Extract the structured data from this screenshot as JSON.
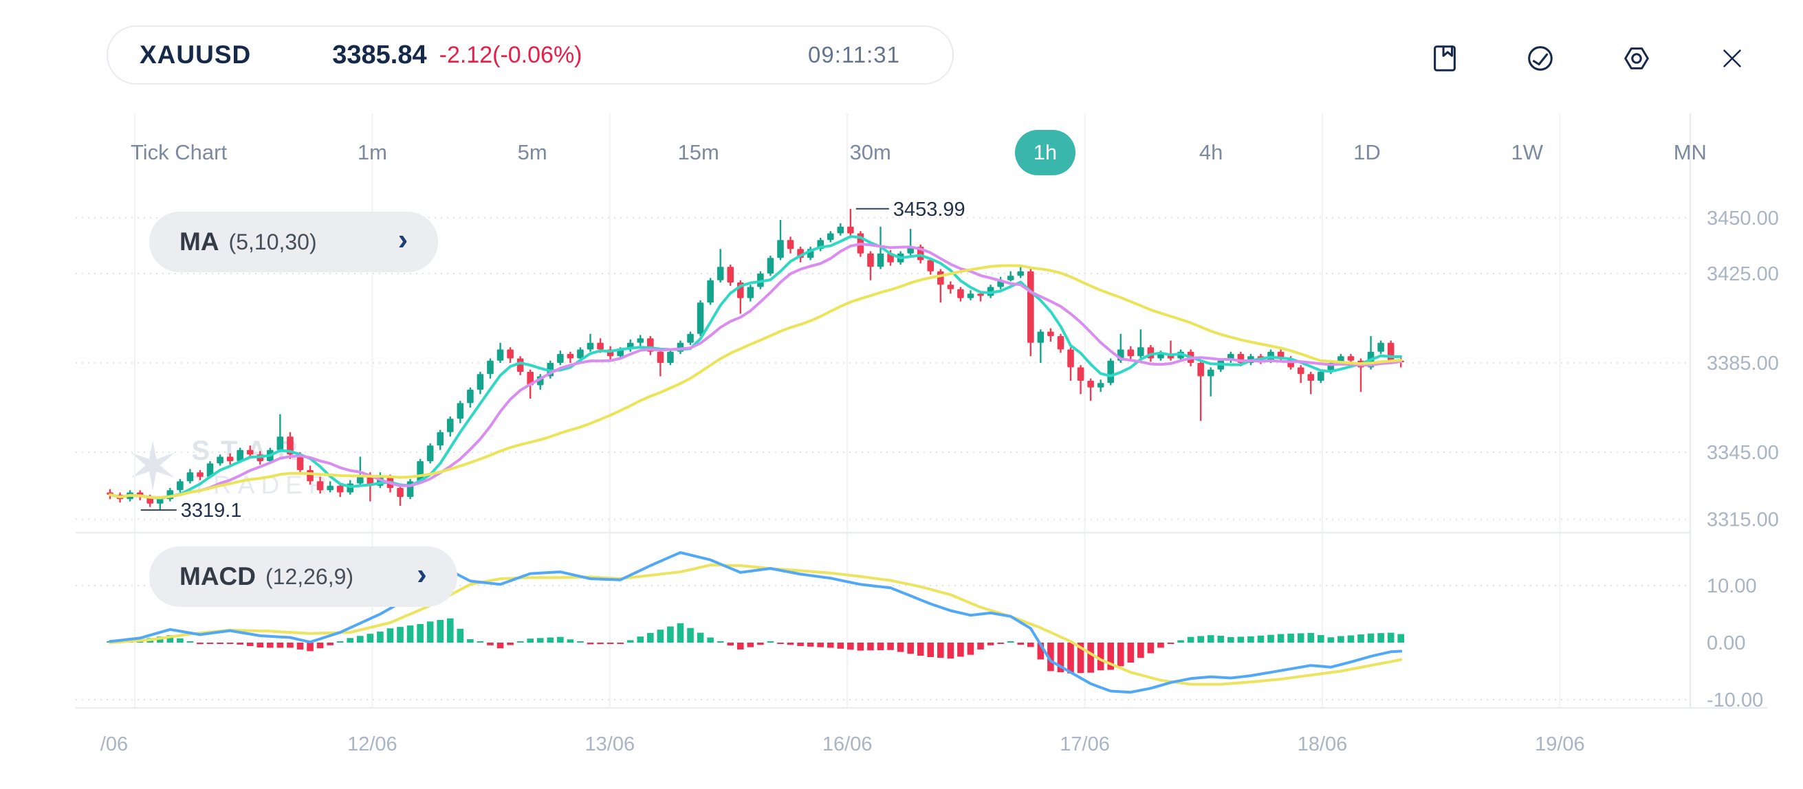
{
  "header": {
    "symbol": "XAUUSD",
    "price": "3385.84",
    "change": "-2.12(-0.06%)",
    "time": "09:11:31"
  },
  "toolbar": {
    "icons": [
      "bookmark",
      "trend-circle",
      "settings-hex",
      "close"
    ]
  },
  "timeframes": {
    "items": [
      "Tick Chart",
      "1m",
      "5m",
      "15m",
      "30m",
      "1h",
      "4h",
      "1D",
      "1W",
      "MN"
    ],
    "active": "1h"
  },
  "indicators": {
    "ma": {
      "name": "MA",
      "params": "(5,10,30)"
    },
    "macd": {
      "name": "MACD",
      "params": "(12,26,9)"
    }
  },
  "watermark": {
    "line1": "STAR",
    "line2": "TRADER"
  },
  "colors": {
    "up": "#14a38d",
    "down": "#ef3a53",
    "hist_up": "#19bd8e",
    "hist_down": "#ef2d4e",
    "ma5": "#2fd8c4",
    "ma10": "#d98df0",
    "ma30": "#ece458",
    "macd_line": "#51a8f7",
    "signal_line": "#ece35e",
    "grid_dotted": "#dfe3e9",
    "grid_solid": "#f1f2f5",
    "separator": "#e9ecf0",
    "axis_text": "#a9b4c5",
    "annotation_text": "#22324e",
    "accent": "#3ab7ac"
  },
  "chart_data": {
    "type": "candlestick",
    "title": "XAUUSD 1h with MA(5,10,30) and MACD(12,26,9)",
    "x_labels": [
      "/06",
      "12/06",
      "13/06",
      "16/06",
      "17/06",
      "18/06",
      "19/06"
    ],
    "price_axis_ticks": [
      3450.0,
      3425.0,
      3385.0,
      3345.0,
      3315.0
    ],
    "price_axis_range": [
      3310,
      3460
    ],
    "macd_axis_ticks": [
      10.0,
      0.0,
      -10.0
    ],
    "macd_axis_range": [
      -13,
      17
    ],
    "annotations": {
      "high": {
        "text": "3453.99",
        "bar": 74,
        "price": 3453.99
      },
      "low": {
        "text": "3319.1",
        "bar": 5,
        "price": 3319.1
      }
    },
    "moving_average_periods": [
      5,
      10,
      30
    ],
    "macd_params": [
      12,
      26,
      9
    ],
    "candles_ohlc": [
      [
        3327,
        3328.5,
        3324,
        3326
      ],
      [
        3326,
        3327,
        3322.5,
        3324
      ],
      [
        3324,
        3328,
        3323,
        3327
      ],
      [
        3327,
        3328,
        3323.5,
        3325
      ],
      [
        3325,
        3326,
        3320.5,
        3322
      ],
      [
        3322,
        3325,
        3319.1,
        3324
      ],
      [
        3324,
        3329,
        3323,
        3328
      ],
      [
        3328,
        3333,
        3327,
        3332
      ],
      [
        3332,
        3337.5,
        3331,
        3336
      ],
      [
        3336,
        3337,
        3332.5,
        3334
      ],
      [
        3334,
        3341,
        3333.5,
        3340
      ],
      [
        3340,
        3344,
        3339,
        3343
      ],
      [
        3343,
        3344.5,
        3339.5,
        3341
      ],
      [
        3341,
        3347,
        3340.5,
        3346
      ],
      [
        3346,
        3348,
        3342.5,
        3344
      ],
      [
        3344,
        3345.5,
        3339.5,
        3341
      ],
      [
        3341,
        3347,
        3340,
        3346
      ],
      [
        3346,
        3362,
        3345,
        3352
      ],
      [
        3352,
        3354,
        3342,
        3344
      ],
      [
        3344,
        3345,
        3335,
        3337
      ],
      [
        3337,
        3339,
        3330.5,
        3332
      ],
      [
        3332,
        3334,
        3326.5,
        3328
      ],
      [
        3328,
        3332,
        3327,
        3330
      ],
      [
        3330,
        3331,
        3325,
        3327
      ],
      [
        3327,
        3332.5,
        3326,
        3331
      ],
      [
        3331,
        3343,
        3330,
        3334
      ],
      [
        3334,
        3336,
        3323,
        3330
      ],
      [
        3330,
        3336,
        3329,
        3334
      ],
      [
        3334,
        3335,
        3327,
        3329
      ],
      [
        3329,
        3330,
        3321,
        3325
      ],
      [
        3325,
        3333,
        3324,
        3332
      ],
      [
        3332,
        3342,
        3331,
        3341
      ],
      [
        3341,
        3349,
        3340,
        3348
      ],
      [
        3348,
        3355,
        3346,
        3354
      ],
      [
        3354,
        3361,
        3352,
        3360
      ],
      [
        3360,
        3368,
        3358,
        3367
      ],
      [
        3367,
        3374,
        3365,
        3373
      ],
      [
        3373,
        3381,
        3371,
        3380
      ],
      [
        3380,
        3387,
        3378,
        3386
      ],
      [
        3386,
        3394,
        3385,
        3391
      ],
      [
        3391,
        3392,
        3385,
        3387
      ],
      [
        3387,
        3388,
        3379.5,
        3381
      ],
      [
        3381,
        3382,
        3369,
        3375
      ],
      [
        3375,
        3380,
        3373,
        3379
      ],
      [
        3379,
        3386,
        3378,
        3385
      ],
      [
        3385,
        3390.5,
        3384,
        3389
      ],
      [
        3389,
        3390,
        3385,
        3387
      ],
      [
        3387,
        3392,
        3386,
        3391
      ],
      [
        3391,
        3398,
        3390,
        3394
      ],
      [
        3394,
        3396,
        3389.5,
        3391
      ],
      [
        3391,
        3392.5,
        3386.5,
        3388
      ],
      [
        3388,
        3392,
        3387,
        3391
      ],
      [
        3391,
        3395.5,
        3390,
        3394
      ],
      [
        3394,
        3397.5,
        3392,
        3396
      ],
      [
        3396,
        3397,
        3388.5,
        3390
      ],
      [
        3390,
        3391,
        3379,
        3385
      ],
      [
        3385,
        3391,
        3384,
        3390
      ],
      [
        3390,
        3395,
        3389,
        3394
      ],
      [
        3394,
        3399,
        3393,
        3398
      ],
      [
        3398,
        3413,
        3397,
        3412
      ],
      [
        3412,
        3423,
        3411,
        3422
      ],
      [
        3422,
        3436,
        3421,
        3428
      ],
      [
        3428,
        3429,
        3419.5,
        3421
      ],
      [
        3421,
        3422,
        3407,
        3414
      ],
      [
        3414,
        3420,
        3412.5,
        3419
      ],
      [
        3419,
        3426,
        3418,
        3425
      ],
      [
        3425,
        3433,
        3424,
        3432
      ],
      [
        3432,
        3449,
        3431,
        3440
      ],
      [
        3440,
        3441.5,
        3434,
        3436
      ],
      [
        3436,
        3437,
        3430,
        3432
      ],
      [
        3432,
        3437,
        3431,
        3436
      ],
      [
        3436,
        3441,
        3435,
        3440
      ],
      [
        3440,
        3444,
        3439,
        3443
      ],
      [
        3443,
        3447.5,
        3442,
        3446
      ],
      [
        3446,
        3453.99,
        3441,
        3443
      ],
      [
        3443,
        3444,
        3432.5,
        3434
      ],
      [
        3434,
        3435,
        3422,
        3428
      ],
      [
        3428,
        3446,
        3427,
        3434
      ],
      [
        3434,
        3435.5,
        3428.5,
        3430
      ],
      [
        3430,
        3435,
        3429,
        3434
      ],
      [
        3434,
        3445,
        3433,
        3437
      ],
      [
        3437,
        3438,
        3429.5,
        3431
      ],
      [
        3431,
        3432,
        3424.5,
        3426
      ],
      [
        3426,
        3427,
        3412,
        3420
      ],
      [
        3420,
        3421.5,
        3416,
        3418
      ],
      [
        3418,
        3419,
        3412.5,
        3414
      ],
      [
        3414,
        3417.5,
        3413,
        3416
      ],
      [
        3416,
        3417,
        3412.5,
        3415
      ],
      [
        3415,
        3420,
        3414,
        3419
      ],
      [
        3419,
        3423.5,
        3418,
        3422
      ],
      [
        3422,
        3426,
        3421.5,
        3424
      ],
      [
        3424,
        3429,
        3423,
        3426
      ],
      [
        3426,
        3427,
        3388,
        3394
      ],
      [
        3394,
        3400,
        3385,
        3399
      ],
      [
        3399,
        3400.5,
        3394.5,
        3397
      ],
      [
        3397,
        3398,
        3389.5,
        3391
      ],
      [
        3391,
        3392,
        3377,
        3383
      ],
      [
        3383,
        3384,
        3371,
        3377
      ],
      [
        3377,
        3378,
        3368,
        3374
      ],
      [
        3374,
        3377.5,
        3372,
        3376
      ],
      [
        3376,
        3387,
        3375,
        3386
      ],
      [
        3386,
        3398,
        3385,
        3391
      ],
      [
        3391,
        3392.5,
        3386,
        3388
      ],
      [
        3388,
        3400,
        3387,
        3392
      ],
      [
        3392,
        3393,
        3385.5,
        3387
      ],
      [
        3387,
        3390.5,
        3386,
        3389
      ],
      [
        3389,
        3395,
        3386,
        3387
      ],
      [
        3387,
        3391,
        3386,
        3390
      ],
      [
        3390,
        3391,
        3383.5,
        3385
      ],
      [
        3385,
        3386,
        3359,
        3379
      ],
      [
        3379,
        3383,
        3370,
        3382
      ],
      [
        3382,
        3387,
        3381,
        3386
      ],
      [
        3386,
        3390,
        3385,
        3389
      ],
      [
        3389,
        3390,
        3383.5,
        3385
      ],
      [
        3385,
        3389,
        3384,
        3388
      ],
      [
        3388,
        3389,
        3384.5,
        3386
      ],
      [
        3386,
        3391,
        3385,
        3390
      ],
      [
        3390,
        3391,
        3386,
        3387
      ],
      [
        3387,
        3388,
        3382,
        3383
      ],
      [
        3383,
        3384,
        3376,
        3380
      ],
      [
        3380,
        3381,
        3371,
        3377
      ],
      [
        3377,
        3382,
        3376,
        3381
      ],
      [
        3381,
        3386,
        3380,
        3385
      ],
      [
        3385,
        3389,
        3384,
        3388
      ],
      [
        3388,
        3389,
        3385,
        3386
      ],
      [
        3386,
        3387,
        3372,
        3383
      ],
      [
        3383,
        3397,
        3382,
        3390
      ],
      [
        3390,
        3395,
        3389,
        3394
      ],
      [
        3394,
        3395,
        3385,
        3386
      ],
      [
        3386,
        3388,
        3383,
        3385.84
      ]
    ],
    "macd_line_anchors": [
      [
        0,
        0.2
      ],
      [
        3,
        0.8
      ],
      [
        6,
        2.3
      ],
      [
        9,
        1.4
      ],
      [
        12,
        2.1
      ],
      [
        15,
        1.2
      ],
      [
        18,
        0.9
      ],
      [
        20,
        0.1
      ],
      [
        23,
        1.8
      ],
      [
        27,
        5.0
      ],
      [
        31,
        9.0
      ],
      [
        34,
        12.6
      ],
      [
        36,
        10.8
      ],
      [
        39,
        10.2
      ],
      [
        42,
        12.1
      ],
      [
        45,
        12.4
      ],
      [
        48,
        11.2
      ],
      [
        51,
        11.0
      ],
      [
        54,
        13.5
      ],
      [
        57,
        15.8
      ],
      [
        60,
        14.5
      ],
      [
        63,
        12.3
      ],
      [
        66,
        13.0
      ],
      [
        69,
        12.0
      ],
      [
        72,
        11.3
      ],
      [
        75,
        10.2
      ],
      [
        78,
        9.6
      ],
      [
        80,
        8.2
      ],
      [
        82,
        6.8
      ],
      [
        84,
        5.6
      ],
      [
        86,
        4.8
      ],
      [
        88,
        5.2
      ],
      [
        90,
        4.6
      ],
      [
        92,
        2.5
      ],
      [
        94,
        -3.2
      ],
      [
        96,
        -5.2
      ],
      [
        98,
        -7.2
      ],
      [
        100,
        -8.5
      ],
      [
        102,
        -8.7
      ],
      [
        104,
        -8.0
      ],
      [
        106,
        -7.0
      ],
      [
        108,
        -6.3
      ],
      [
        110,
        -6.0
      ],
      [
        112,
        -6.2
      ],
      [
        114,
        -5.8
      ],
      [
        116,
        -5.2
      ],
      [
        118,
        -4.6
      ],
      [
        120,
        -4.0
      ],
      [
        122,
        -4.3
      ],
      [
        124,
        -3.4
      ],
      [
        126,
        -2.4
      ],
      [
        128,
        -1.6
      ],
      [
        129,
        -1.5
      ]
    ],
    "signal_line_anchors": [
      [
        0,
        0.0
      ],
      [
        4,
        0.5
      ],
      [
        8,
        1.5
      ],
      [
        12,
        2.2
      ],
      [
        16,
        2.0
      ],
      [
        20,
        1.6
      ],
      [
        24,
        1.8
      ],
      [
        28,
        3.5
      ],
      [
        32,
        6.5
      ],
      [
        36,
        10.2
      ],
      [
        39,
        11.2
      ],
      [
        42,
        11.4
      ],
      [
        45,
        11.4
      ],
      [
        48,
        11.5
      ],
      [
        51,
        11.2
      ],
      [
        54,
        11.8
      ],
      [
        57,
        12.4
      ],
      [
        60,
        13.6
      ],
      [
        63,
        13.5
      ],
      [
        66,
        13.0
      ],
      [
        69,
        12.6
      ],
      [
        72,
        12.2
      ],
      [
        75,
        11.6
      ],
      [
        78,
        10.9
      ],
      [
        81,
        9.8
      ],
      [
        84,
        8.4
      ],
      [
        87,
        6.2
      ],
      [
        90,
        4.6
      ],
      [
        93,
        2.6
      ],
      [
        96,
        0.2
      ],
      [
        99,
        -3.0
      ],
      [
        102,
        -5.2
      ],
      [
        105,
        -6.6
      ],
      [
        108,
        -7.3
      ],
      [
        111,
        -7.3
      ],
      [
        114,
        -6.9
      ],
      [
        117,
        -6.4
      ],
      [
        120,
        -5.7
      ],
      [
        123,
        -5.0
      ],
      [
        126,
        -4.0
      ],
      [
        129,
        -3.0
      ]
    ]
  }
}
